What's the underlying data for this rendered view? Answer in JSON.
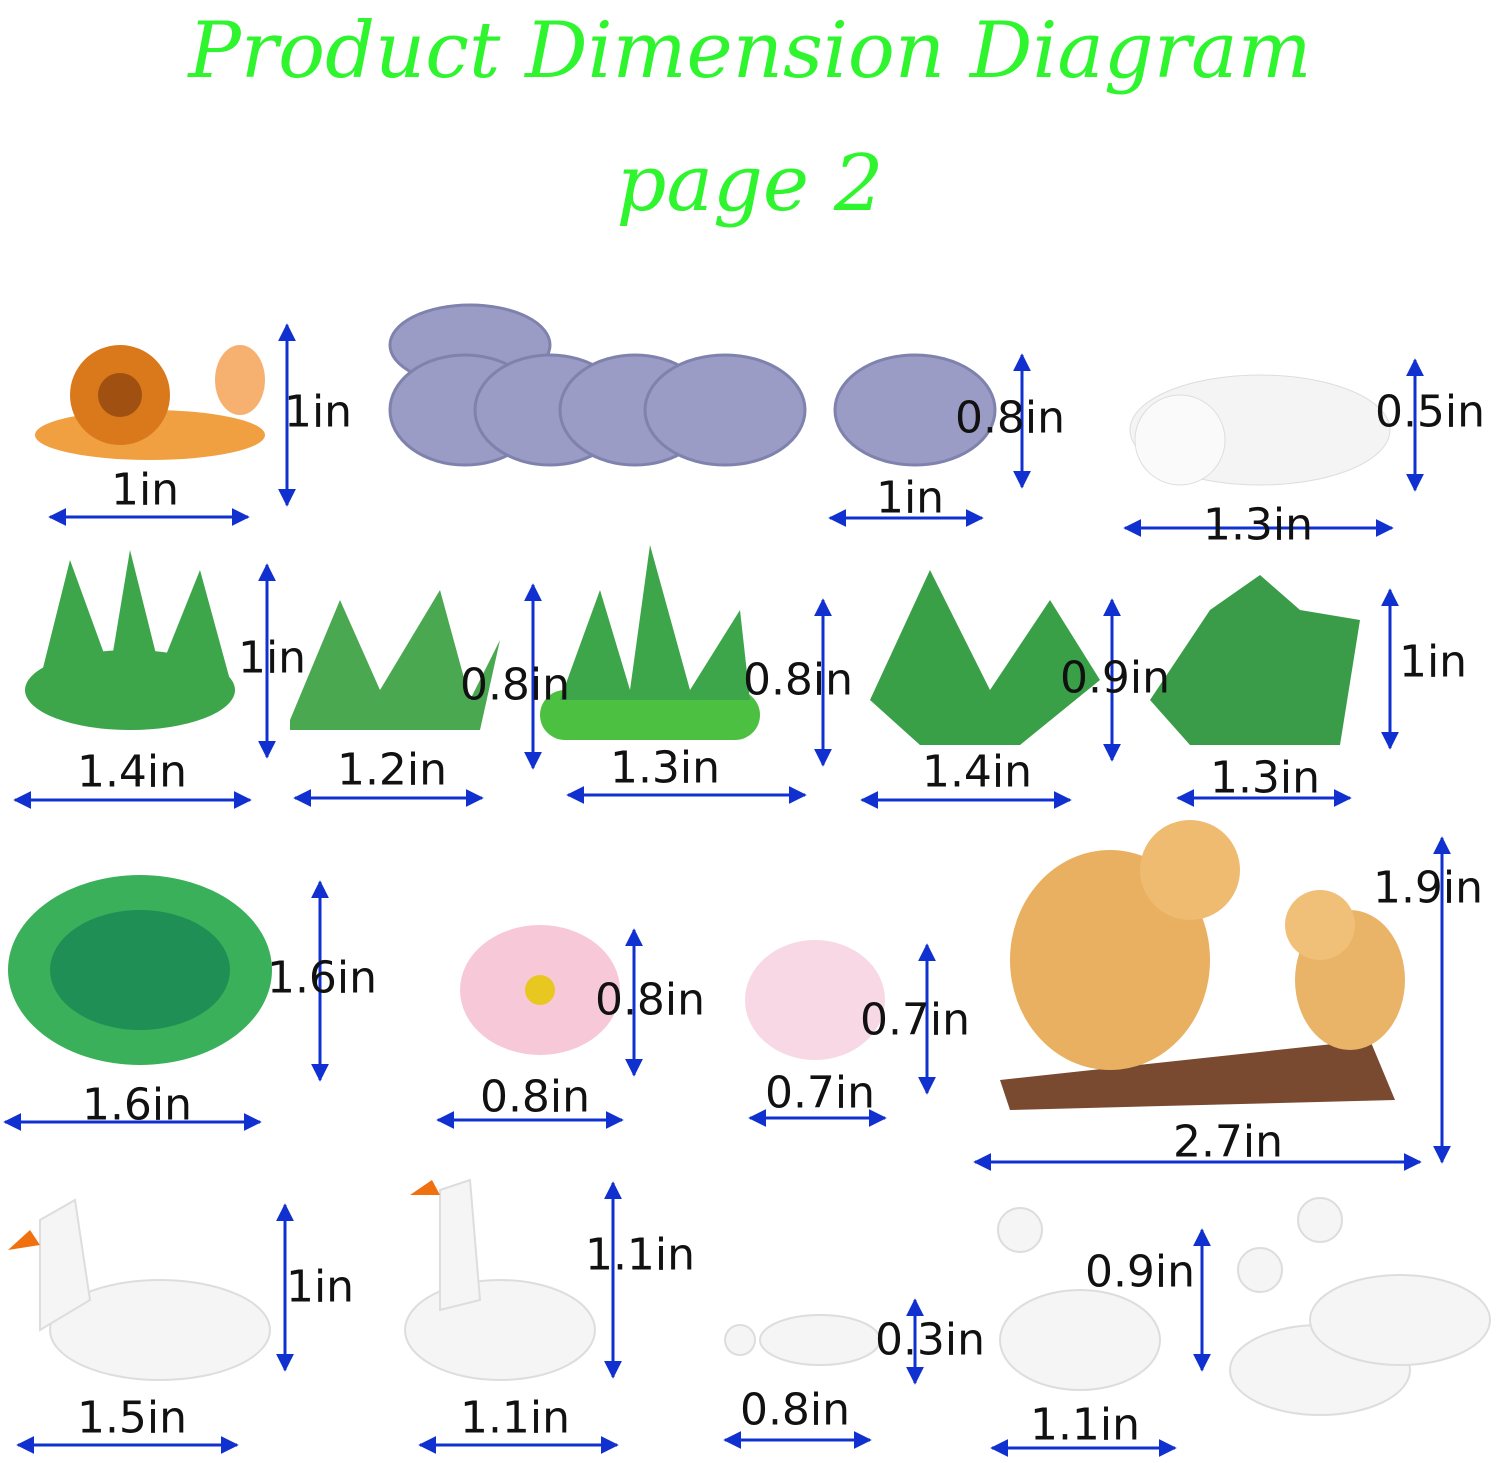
{
  "title": {
    "line1": "Product Dimension Diagram",
    "line2": "page 2",
    "color": "#2ef52e"
  },
  "arrow_color": "#1030d0",
  "items": [
    {
      "name": "snail",
      "height": "1in",
      "width": "1in"
    },
    {
      "name": "single-stepping-stone",
      "height": "0.8in",
      "width": "1in"
    },
    {
      "name": "sleeping-dog",
      "height": "0.5in",
      "width": "1.3in"
    },
    {
      "name": "grass-pink-buds",
      "height": "1in",
      "width": "1.4in"
    },
    {
      "name": "grass-tuft",
      "height": "0.8in",
      "width": "1.2in"
    },
    {
      "name": "grass-pink-flowers",
      "height": "0.8in",
      "width": "1.3in"
    },
    {
      "name": "leafy-plant",
      "height": "0.9in",
      "width": "1.4in"
    },
    {
      "name": "plant-pink-buds",
      "height": "1in",
      "width": "1.3in"
    },
    {
      "name": "lily-pad",
      "height": "1.6in",
      "width": "1.6in"
    },
    {
      "name": "pink-lotus",
      "height": "0.8in",
      "width": "0.8in"
    },
    {
      "name": "white-lotus",
      "height": "0.7in",
      "width": "0.7in"
    },
    {
      "name": "squirrels-on-log",
      "height": "1.9in",
      "width": "2.7in"
    },
    {
      "name": "swan-left",
      "height": "1in",
      "width": "1.5in"
    },
    {
      "name": "swan-upright",
      "height": "1.1in",
      "width": "1.1in"
    },
    {
      "name": "small-duck",
      "height": "0.3in",
      "width": "0.8in"
    },
    {
      "name": "duck-pair",
      "height": "0.9in",
      "width": "1.1in"
    }
  ]
}
